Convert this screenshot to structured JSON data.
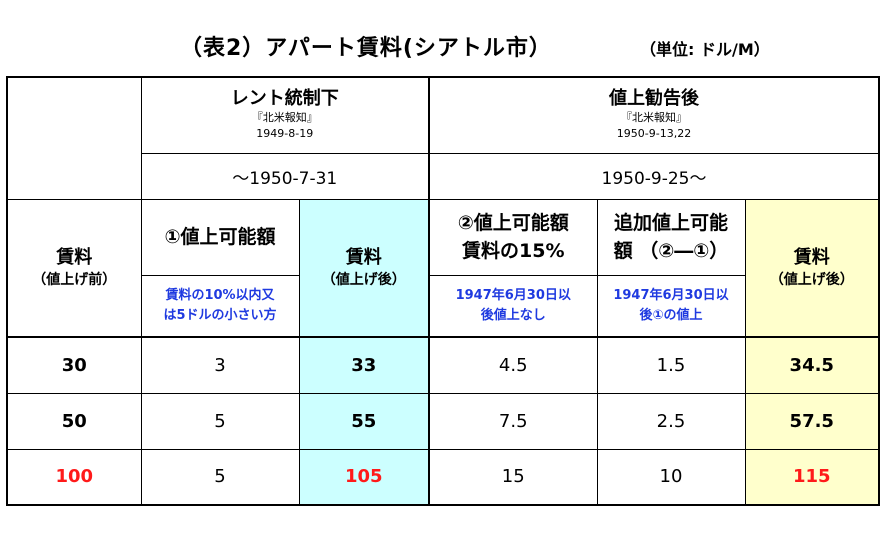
{
  "title": "（表2）アパート賃料(シアトル市）",
  "unit": "（単位: ドル/M）",
  "header": {
    "left_title": "レント統制下",
    "left_source": "『北米報知』",
    "left_date": "1949-8-19",
    "left_period": "～1950-7-31",
    "right_title": "値上勧告後",
    "right_source": "『北米報知』",
    "right_date": "1950-9-13,22",
    "right_period": "1950-9-25～"
  },
  "columns": {
    "c1_line1": "賃料",
    "c1_line2": "（値上げ前）",
    "c2": "①値上可能額",
    "c2_note_line1": "賃料の10%以内又",
    "c2_note_line2": "は5ドルの小さい方",
    "c3_line1": "賃料",
    "c3_line2": "（値上げ後）",
    "c4_line1": "②値上可能額",
    "c4_line2": "賃料の15%",
    "c4_note_line1": "1947年6月30日以",
    "c4_note_line2": "後値上なし",
    "c5_line1": "追加値上可能",
    "c5_line2": "額 （②―①）",
    "c5_note_line1": "1947年6月30日以",
    "c5_note_line2": "後①の値上",
    "c6_line1": "賃料",
    "c6_line2": "（値上げ後）"
  },
  "rows": [
    {
      "rent_before": "30",
      "increase1": "3",
      "rent_after1": "33",
      "increase2": "4.5",
      "additional": "1.5",
      "rent_after2": "34.5"
    },
    {
      "rent_before": "50",
      "increase1": "5",
      "rent_after1": "55",
      "increase2": "7.5",
      "additional": "2.5",
      "rent_after2": "57.5"
    },
    {
      "rent_before": "100",
      "increase1": "5",
      "rent_after1": "105",
      "increase2": "15",
      "additional": "10",
      "rent_after2": "115"
    }
  ],
  "colors": {
    "highlight_text": "#ff1a1a",
    "note_text": "#1f3ae0",
    "cyan_fill": "#ccffff",
    "yellow_fill": "#ffffcc"
  }
}
